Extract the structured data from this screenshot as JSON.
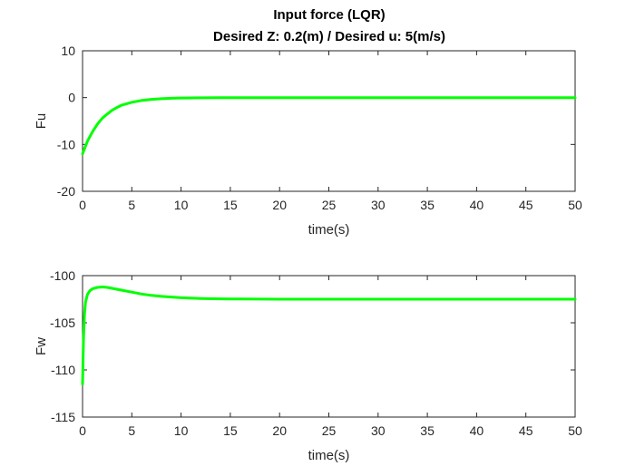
{
  "figure": {
    "title_line1": "Input force (LQR)",
    "title_line2": "Desired Z: 0.2(m) / Desired u: 5(m/s)"
  },
  "chart_data": [
    {
      "type": "line",
      "title": "Input force (LQR) / Desired Z: 0.2(m) / Desired u: 5(m/s)",
      "xlabel": "time(s)",
      "ylabel": "Fu",
      "xlim": [
        0,
        50
      ],
      "ylim": [
        -20,
        10
      ],
      "xticks": [
        0,
        5,
        10,
        15,
        20,
        25,
        30,
        35,
        40,
        45,
        50
      ],
      "yticks": [
        -20,
        -10,
        0,
        10
      ],
      "grid": false,
      "color": "#00ff00",
      "series": [
        {
          "x": [
            0,
            0.5,
            1,
            1.5,
            2,
            2.5,
            3,
            3.5,
            4,
            5,
            6,
            7,
            8,
            9,
            10,
            12,
            14,
            16,
            18,
            20,
            25,
            30,
            35,
            40,
            45,
            50
          ],
          "y": [
            -12,
            -9.3,
            -7.3,
            -5.7,
            -4.4,
            -3.5,
            -2.7,
            -2.1,
            -1.6,
            -1.0,
            -0.6,
            -0.38,
            -0.23,
            -0.14,
            -0.09,
            -0.04,
            -0.02,
            -0.01,
            0,
            0,
            0,
            0,
            0,
            0,
            0,
            0
          ]
        }
      ]
    },
    {
      "type": "line",
      "xlabel": "time(s)",
      "ylabel": "Fw",
      "xlim": [
        0,
        50
      ],
      "ylim": [
        -115,
        -100
      ],
      "xticks": [
        0,
        5,
        10,
        15,
        20,
        25,
        30,
        35,
        40,
        45,
        50
      ],
      "yticks": [
        -115,
        -110,
        -105,
        -100
      ],
      "grid": false,
      "color": "#00ff00",
      "series": [
        {
          "x": [
            0,
            0.1,
            0.2,
            0.3,
            0.5,
            0.75,
            1,
            1.5,
            2,
            2.5,
            3,
            4,
            5,
            6,
            7,
            8,
            10,
            12,
            14,
            16,
            20,
            25,
            30,
            40,
            50
          ],
          "y": [
            -111.5,
            -106.5,
            -104.0,
            -102.8,
            -102.0,
            -101.6,
            -101.4,
            -101.25,
            -101.2,
            -101.25,
            -101.35,
            -101.55,
            -101.75,
            -101.95,
            -102.1,
            -102.2,
            -102.35,
            -102.42,
            -102.46,
            -102.48,
            -102.5,
            -102.5,
            -102.5,
            -102.5,
            -102.5
          ]
        }
      ]
    }
  ]
}
